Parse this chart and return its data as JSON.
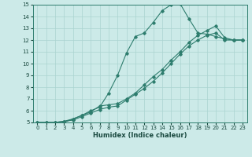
{
  "xlabel": "Humidex (Indice chaleur)",
  "bg_color": "#cceae8",
  "line_color": "#2e7d6e",
  "grid_color": "#aad4d0",
  "xlim": [
    -0.5,
    23.5
  ],
  "ylim": [
    5,
    15
  ],
  "xticks": [
    0,
    1,
    2,
    3,
    4,
    5,
    6,
    7,
    8,
    9,
    10,
    11,
    12,
    13,
    14,
    15,
    16,
    17,
    18,
    19,
    20,
    21,
    22,
    23
  ],
  "yticks": [
    5,
    6,
    7,
    8,
    9,
    10,
    11,
    12,
    13,
    14,
    15
  ],
  "line1_x": [
    0,
    1,
    2,
    3,
    4,
    5,
    6,
    7,
    8,
    9,
    10,
    11,
    12,
    13,
    14,
    15,
    16,
    17,
    18,
    19,
    20,
    21,
    22,
    23
  ],
  "line1_y": [
    5,
    5,
    5,
    5,
    5.3,
    5.6,
    6.0,
    6.3,
    7.5,
    9.0,
    10.9,
    12.3,
    12.6,
    13.5,
    14.5,
    15.0,
    15.1,
    13.8,
    12.6,
    12.5,
    12.3,
    12.1,
    12.0,
    12.0
  ],
  "line2_x": [
    0,
    1,
    2,
    3,
    4,
    5,
    6,
    7,
    8,
    9,
    10,
    11,
    12,
    13,
    14,
    15,
    16,
    17,
    18,
    19,
    20,
    21,
    22,
    23
  ],
  "line2_y": [
    5,
    5,
    5,
    5.1,
    5.3,
    5.6,
    5.9,
    6.4,
    6.5,
    6.6,
    7.0,
    7.5,
    8.2,
    8.9,
    9.5,
    10.3,
    11.0,
    11.8,
    12.4,
    12.8,
    13.2,
    12.2,
    12.0,
    12.0
  ],
  "line3_x": [
    0,
    1,
    2,
    3,
    4,
    5,
    6,
    7,
    8,
    9,
    10,
    11,
    12,
    13,
    14,
    15,
    16,
    17,
    18,
    19,
    20,
    21,
    22,
    23
  ],
  "line3_y": [
    5,
    5,
    5,
    5.1,
    5.2,
    5.5,
    5.8,
    6.1,
    6.3,
    6.4,
    6.9,
    7.4,
    7.9,
    8.5,
    9.2,
    10.0,
    10.8,
    11.5,
    12.0,
    12.4,
    12.6,
    12.0,
    12.0,
    12.0
  ],
  "tick_fontsize": 5,
  "xlabel_fontsize": 6
}
